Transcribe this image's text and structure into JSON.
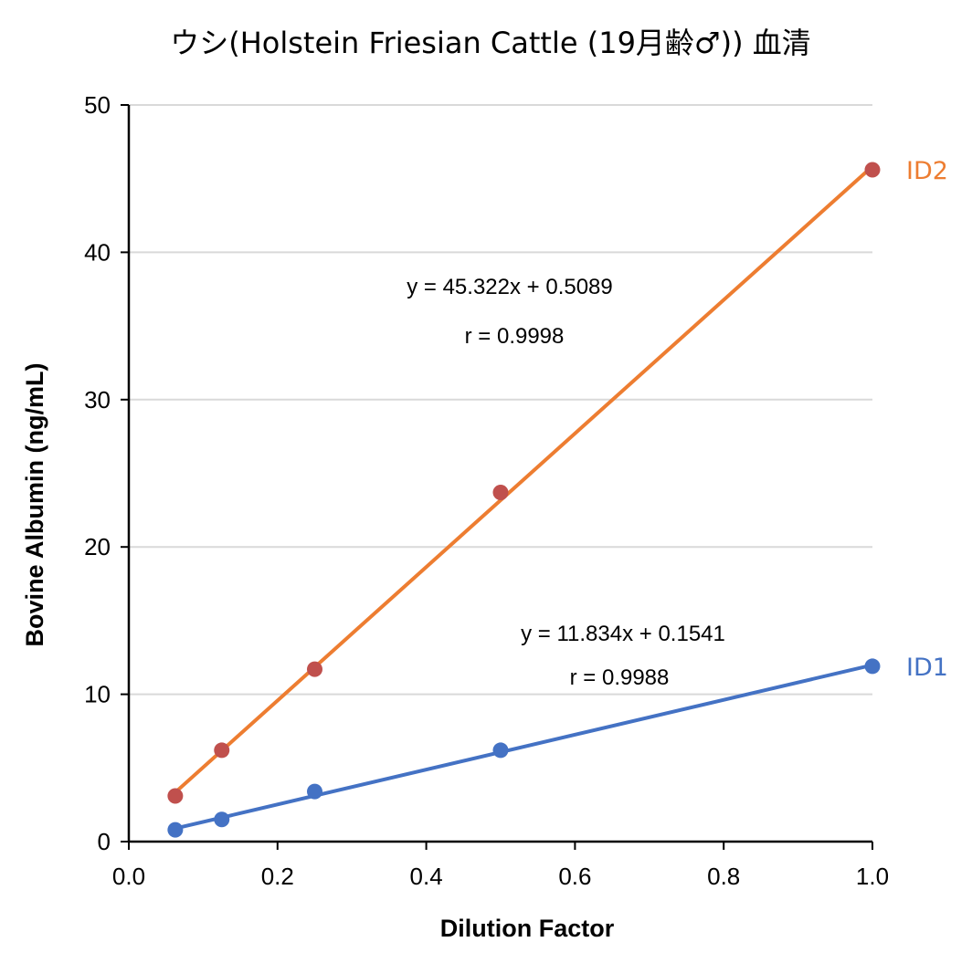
{
  "chart_data": {
    "type": "scatter",
    "title": "ウシ(Holstein Friesian Cattle (19月齢♂)) 血清",
    "xlabel": "Dilution Factor",
    "ylabel": "Bovine Albumin (ng/mL)",
    "xlim": [
      0.0,
      1.0
    ],
    "ylim": [
      0,
      50
    ],
    "x_ticks": [
      "0.0",
      "0.2",
      "0.4",
      "0.6",
      "0.8",
      "1.0"
    ],
    "y_ticks": [
      "0",
      "10",
      "20",
      "30",
      "40",
      "50"
    ],
    "grid": "horizontal",
    "series": [
      {
        "name": "ID2",
        "point_color": "#c0504d",
        "line_color": "#ed7d31",
        "label_color": "#ed7d31",
        "points": [
          {
            "x": 0.0625,
            "y": 3.1
          },
          {
            "x": 0.125,
            "y": 6.2
          },
          {
            "x": 0.25,
            "y": 11.7
          },
          {
            "x": 0.5,
            "y": 23.7
          },
          {
            "x": 1.0,
            "y": 45.6
          }
        ],
        "trendline": {
          "slope": 45.322,
          "intercept": 0.5089,
          "x_range": [
            0.0625,
            1.0
          ]
        },
        "equation": "y = 45.322x + 0.5089",
        "r_text": "r = 0.9998"
      },
      {
        "name": "ID1",
        "point_color": "#4472c4",
        "line_color": "#4472c4",
        "label_color": "#4472c4",
        "points": [
          {
            "x": 0.0625,
            "y": 0.8
          },
          {
            "x": 0.125,
            "y": 1.5
          },
          {
            "x": 0.25,
            "y": 3.4
          },
          {
            "x": 0.5,
            "y": 6.2
          },
          {
            "x": 1.0,
            "y": 11.9
          }
        ],
        "trendline": {
          "slope": 11.834,
          "intercept": 0.1541,
          "x_range": [
            0.0625,
            1.0
          ]
        },
        "equation": "y = 11.834x + 0.1541",
        "r_text": "r = 0.9988"
      }
    ]
  }
}
